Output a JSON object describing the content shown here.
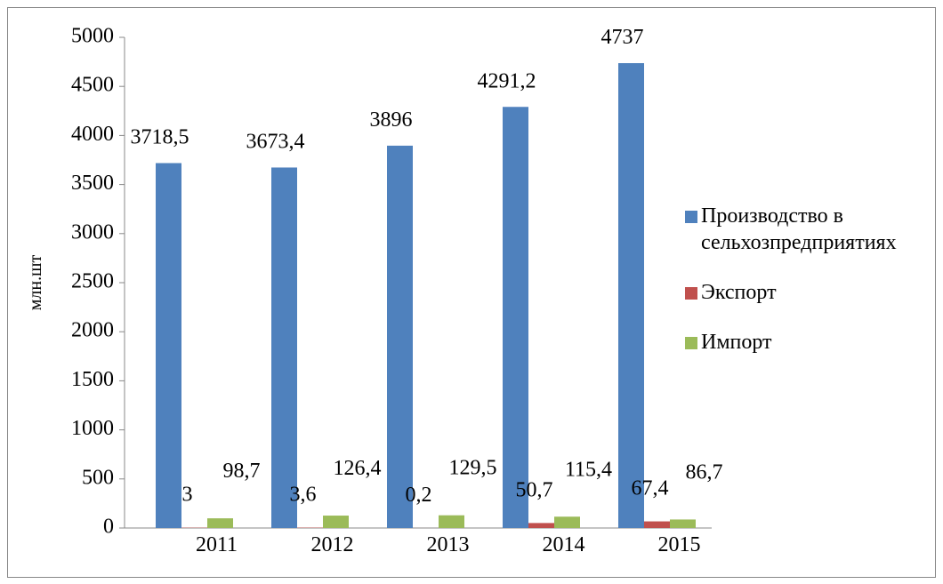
{
  "chart_data": {
    "type": "bar",
    "ylabel": "млн.шт",
    "categories": [
      "2011",
      "2012",
      "2013",
      "2014",
      "2015"
    ],
    "series": [
      {
        "name": "Производство в сельхозпредприятиях",
        "color": "#4f81bd",
        "values": [
          3718.5,
          3673.4,
          3896,
          4291.2,
          4737
        ],
        "value_labels": [
          "3718,5",
          "3673,4",
          "3896",
          "4291,2",
          "4737"
        ]
      },
      {
        "name": "Экспорт",
        "color": "#c0504d",
        "values": [
          3,
          3.6,
          0.2,
          50.7,
          67.4
        ],
        "value_labels": [
          "3",
          "3,6",
          "0,2",
          "50,7",
          "67,4"
        ]
      },
      {
        "name": "Импорт",
        "color": "#9bbb59",
        "values": [
          98.7,
          126.4,
          129.5,
          115.4,
          86.7
        ],
        "value_labels": [
          "98,7",
          "126,4",
          "129,5",
          "115,4",
          "86,7"
        ]
      }
    ],
    "ylim": [
      0,
      5000
    ],
    "yticks": [
      0,
      500,
      1000,
      1500,
      2000,
      2500,
      3000,
      3500,
      4000,
      4500,
      5000
    ],
    "grid": false,
    "legend": "right"
  }
}
